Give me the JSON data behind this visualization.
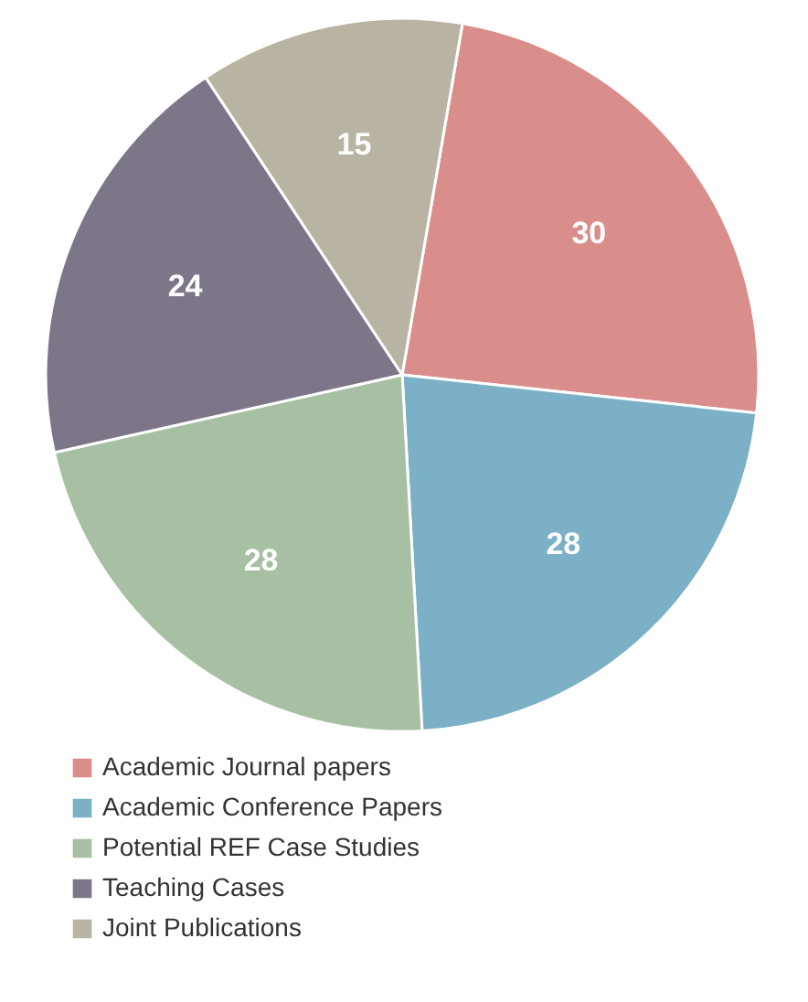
{
  "chart_data": {
    "type": "pie",
    "categories": [
      "Academic Journal papers",
      "Academic Conference Papers",
      "Potential REF Case Studies",
      "Teaching Cases",
      "Joint Publications"
    ],
    "values": [
      30,
      28,
      28,
      24,
      15
    ],
    "colors": [
      "#d98e8b",
      "#7bb0c6",
      "#a7bfa2",
      "#7d7588",
      "#b8b3a2"
    ],
    "data_labels": true,
    "legend": "bottom left"
  }
}
